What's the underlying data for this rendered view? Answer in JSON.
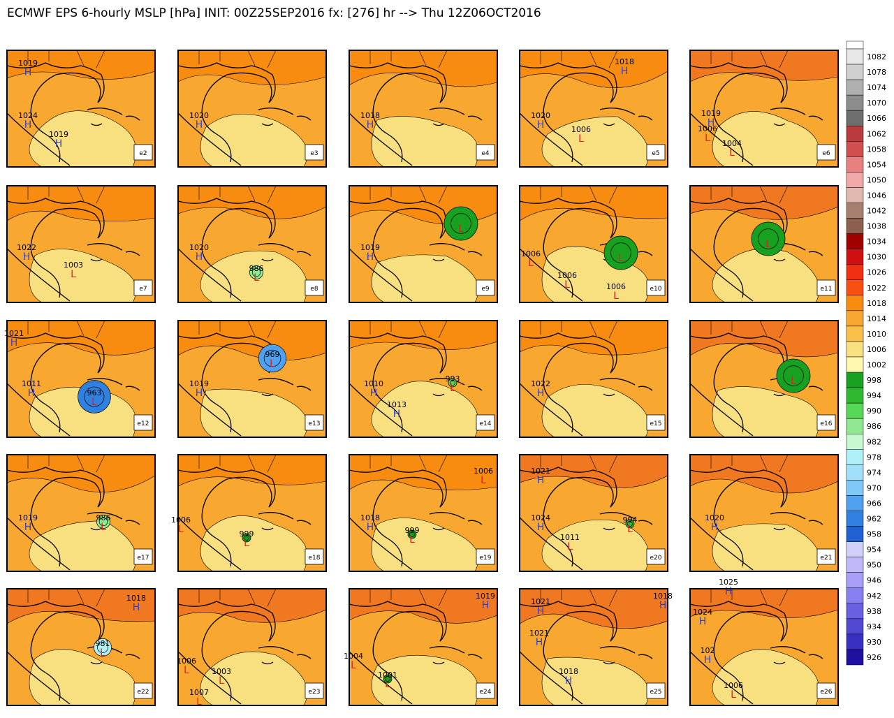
{
  "title": "ECMWF EPS 6-hourly MSLP [hPa] INIT: 00Z25SEP2016 fx: [276] hr --> Thu 12Z06OCT2016",
  "legend": [
    {
      "value": 1082,
      "color": "#e8e8e8"
    },
    {
      "value": 1078,
      "color": "#d0d0d0"
    },
    {
      "value": 1074,
      "color": "#b0b0b0"
    },
    {
      "value": 1070,
      "color": "#8c8c8c"
    },
    {
      "value": 1066,
      "color": "#6e6e6e"
    },
    {
      "value": 1062,
      "color": "#b83c3c"
    },
    {
      "value": 1058,
      "color": "#d05050"
    },
    {
      "value": 1054,
      "color": "#e88080"
    },
    {
      "value": 1050,
      "color": "#f0a8a8"
    },
    {
      "value": 1046,
      "color": "#e0b8b0"
    },
    {
      "value": 1042,
      "color": "#a88070"
    },
    {
      "value": 1038,
      "color": "#8c6050"
    },
    {
      "value": 1034,
      "color": "#a00000"
    },
    {
      "value": 1030,
      "color": "#d01010"
    },
    {
      "value": 1026,
      "color": "#f03010"
    },
    {
      "value": 1022,
      "color": "#f85010"
    },
    {
      "value": 1018,
      "color": "#f88c10"
    },
    {
      "value": 1014,
      "color": "#f8a830"
    },
    {
      "value": 1010,
      "color": "#f8c048"
    },
    {
      "value": 1006,
      "color": "#f8e080"
    },
    {
      "value": 1002,
      "color": "#fff8b0"
    },
    {
      "value": 998,
      "color": "#18a020"
    },
    {
      "value": 994,
      "color": "#30b830"
    },
    {
      "value": 990,
      "color": "#58d858"
    },
    {
      "value": 986,
      "color": "#90e890"
    },
    {
      "value": 982,
      "color": "#c8f8d0"
    },
    {
      "value": 978,
      "color": "#b0f0f8"
    },
    {
      "value": 974,
      "color": "#a0e0f8"
    },
    {
      "value": 970,
      "color": "#80c8f8"
    },
    {
      "value": 966,
      "color": "#50a0f0"
    },
    {
      "value": 962,
      "color": "#3080e0"
    },
    {
      "value": 958,
      "color": "#2060d0"
    },
    {
      "value": 954,
      "color": "#d0d0f8"
    },
    {
      "value": 950,
      "color": "#c0b8f8"
    },
    {
      "value": 946,
      "color": "#a8a0f8"
    },
    {
      "value": 942,
      "color": "#8880f0"
    },
    {
      "value": 938,
      "color": "#6860e0"
    },
    {
      "value": 934,
      "color": "#5048d0"
    },
    {
      "value": 930,
      "color": "#3830c0"
    },
    {
      "value": 926,
      "color": "#2010a0"
    }
  ],
  "panels": [
    {
      "label": "e2",
      "centers": [
        {
          "pressure": 1019,
          "kind": "H"
        },
        {
          "pressure": 1024,
          "kind": "H"
        },
        {
          "pressure": 1019,
          "kind": "H"
        }
      ]
    },
    {
      "label": "e3",
      "centers": [
        {
          "pressure": 1020,
          "kind": "H"
        }
      ]
    },
    {
      "label": "e4",
      "centers": [
        {
          "pressure": 1018,
          "kind": "H"
        }
      ]
    },
    {
      "label": "e5",
      "centers": [
        {
          "pressure": 1018,
          "kind": "H"
        },
        {
          "pressure": 1020,
          "kind": "H"
        },
        {
          "pressure": 1006,
          "kind": "L"
        }
      ]
    },
    {
      "label": "e6",
      "centers": [
        {
          "pressure": 1019,
          "kind": "H"
        },
        {
          "pressure": 1006,
          "kind": "L"
        },
        {
          "pressure": 1004,
          "kind": "L"
        }
      ]
    },
    {
      "label": "e7",
      "centers": [
        {
          "pressure": 1022,
          "kind": "H"
        },
        {
          "pressure": 1003,
          "kind": "L"
        }
      ]
    },
    {
      "label": "e8",
      "centers": [
        {
          "pressure": 1020,
          "kind": "H"
        },
        {
          "pressure": 986,
          "kind": "L"
        }
      ]
    },
    {
      "label": "e9",
      "centers": [
        {
          "pressure": 1019,
          "kind": "H"
        },
        {
          "kind": "L"
        }
      ]
    },
    {
      "label": "e10",
      "centers": [
        {
          "pressure": 1006,
          "kind": "L"
        },
        {
          "pressure": 1006,
          "kind": "L"
        },
        {
          "pressure": 1006,
          "kind": "L"
        },
        {
          "kind": "L"
        }
      ]
    },
    {
      "label": "e11",
      "centers": [
        {
          "kind": "L"
        }
      ]
    },
    {
      "label": "e12",
      "centers": [
        {
          "pressure": 1021,
          "kind": "H"
        },
        {
          "pressure": 1011,
          "kind": "H"
        },
        {
          "pressure": 963,
          "kind": "L"
        }
      ]
    },
    {
      "label": "e13",
      "centers": [
        {
          "pressure": 1019,
          "kind": "H"
        },
        {
          "pressure": 969,
          "kind": "L"
        }
      ]
    },
    {
      "label": "e14",
      "centers": [
        {
          "pressure": 1010,
          "kind": "H"
        },
        {
          "pressure": 993,
          "kind": "L"
        },
        {
          "pressure": 1013,
          "kind": "H"
        }
      ]
    },
    {
      "label": "e15",
      "centers": [
        {
          "pressure": 1022,
          "kind": "H"
        }
      ]
    },
    {
      "label": "e16",
      "centers": [
        {
          "kind": "L"
        }
      ]
    },
    {
      "label": "e17",
      "centers": [
        {
          "pressure": 1019,
          "kind": "H"
        },
        {
          "pressure": 986,
          "kind": "L"
        }
      ]
    },
    {
      "label": "e18",
      "centers": [
        {
          "pressure": 1006,
          "kind": "L"
        },
        {
          "pressure": 999,
          "kind": "L"
        }
      ]
    },
    {
      "label": "e19",
      "centers": [
        {
          "pressure": 1006,
          "kind": "L"
        },
        {
          "pressure": 1018,
          "kind": "H"
        },
        {
          "pressure": 999,
          "kind": "L"
        }
      ]
    },
    {
      "label": "e20",
      "centers": [
        {
          "pressure": 1021,
          "kind": "H"
        },
        {
          "pressure": 1024,
          "kind": "H"
        },
        {
          "pressure": 1011,
          "kind": "L"
        },
        {
          "pressure": 994,
          "kind": "L"
        }
      ]
    },
    {
      "label": "e21",
      "centers": [
        {
          "pressure": 1020,
          "kind": "H"
        }
      ]
    },
    {
      "label": "e22",
      "centers": [
        {
          "pressure": 1018,
          "kind": "H"
        },
        {
          "pressure": 981,
          "kind": "L"
        }
      ]
    },
    {
      "label": "e23",
      "centers": [
        {
          "pressure": 1006,
          "kind": "L"
        },
        {
          "pressure": 1007,
          "kind": "L"
        },
        {
          "pressure": 1003,
          "kind": "L"
        }
      ]
    },
    {
      "label": "e24",
      "centers": [
        {
          "pressure": 1019,
          "kind": "H"
        },
        {
          "pressure": 1004,
          "kind": "L"
        },
        {
          "pressure": 1001,
          "kind": "L"
        }
      ]
    },
    {
      "label": "e25",
      "centers": [
        {
          "pressure": 1021,
          "kind": "H"
        },
        {
          "pressure": 1018,
          "kind": "H"
        },
        {
          "pressure": 1021,
          "kind": "H"
        },
        {
          "pressure": 1018,
          "kind": "H"
        }
      ]
    },
    {
      "label": "e26",
      "centers": [
        {
          "pressure": 1025,
          "kind": "H"
        },
        {
          "pressure": 1024,
          "kind": "H"
        },
        {
          "pressure": 102,
          "kind": "H"
        },
        {
          "pressure": 1006,
          "kind": "L"
        }
      ]
    }
  ]
}
